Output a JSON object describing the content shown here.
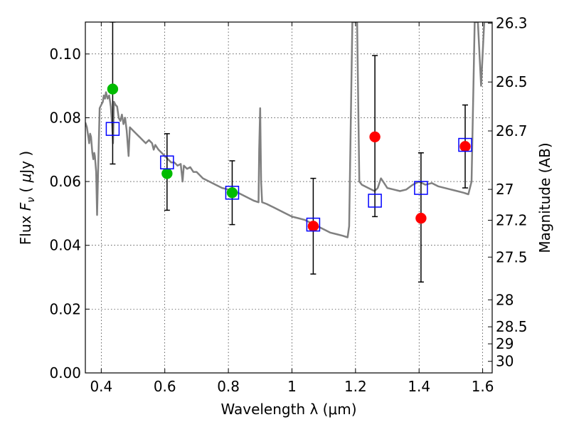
{
  "chart_data": {
    "type": "scatter",
    "xlabel": "Wavelength  λ (μm)",
    "ylabel_left": "Flux  F_ν  ( μJy )",
    "ylabel_right": "Magnitude (AB)",
    "xlim": [
      0.35,
      1.63
    ],
    "ylim": [
      0.0,
      0.11
    ],
    "grid": true,
    "x_ticks": [
      {
        "value": 0.4,
        "label": "0.4"
      },
      {
        "value": 0.6,
        "label": "0.6"
      },
      {
        "value": 0.8,
        "label": "0.8"
      },
      {
        "value": 1.0,
        "label": "1"
      },
      {
        "value": 1.2,
        "label": "1.2"
      },
      {
        "value": 1.4,
        "label": "1.4"
      },
      {
        "value": 1.6,
        "label": "1.6"
      }
    ],
    "y_ticks": [
      {
        "value": 0.0,
        "label": "0.00"
      },
      {
        "value": 0.02,
        "label": "0.02"
      },
      {
        "value": 0.04,
        "label": "0.04"
      },
      {
        "value": 0.06,
        "label": "0.06"
      },
      {
        "value": 0.08,
        "label": "0.08"
      },
      {
        "value": 0.1,
        "label": "0.10"
      }
    ],
    "mag_ticks": [
      {
        "value": 26.3,
        "label": "26.3"
      },
      {
        "value": 26.5,
        "label": "26.5"
      },
      {
        "value": 26.7,
        "label": "26.7"
      },
      {
        "value": 27.0,
        "label": "27"
      },
      {
        "value": 27.2,
        "label": "27.2"
      },
      {
        "value": 27.5,
        "label": "27.5"
      },
      {
        "value": 28.0,
        "label": "28"
      },
      {
        "value": 28.5,
        "label": "28.5"
      },
      {
        "value": 29.0,
        "label": "29"
      },
      {
        "value": 30.0,
        "label": "30"
      }
    ],
    "model_spectrum": {
      "color": "#808080",
      "points": [
        [
          0.35,
          0.0785
        ],
        [
          0.355,
          0.077
        ],
        [
          0.36,
          0.0735
        ],
        [
          0.362,
          0.072
        ],
        [
          0.365,
          0.075
        ],
        [
          0.368,
          0.074
        ],
        [
          0.372,
          0.069
        ],
        [
          0.375,
          0.067
        ],
        [
          0.378,
          0.069
        ],
        [
          0.38,
          0.068
        ],
        [
          0.384,
          0.063
        ],
        [
          0.387,
          0.0495
        ],
        [
          0.39,
          0.063
        ],
        [
          0.395,
          0.083
        ],
        [
          0.4,
          0.084
        ],
        [
          0.405,
          0.085
        ],
        [
          0.408,
          0.087
        ],
        [
          0.412,
          0.086
        ],
        [
          0.415,
          0.088
        ],
        [
          0.42,
          0.086
        ],
        [
          0.425,
          0.087
        ],
        [
          0.43,
          0.0835
        ],
        [
          0.434,
          0.078
        ],
        [
          0.437,
          0.072
        ],
        [
          0.44,
          0.085
        ],
        [
          0.445,
          0.084
        ],
        [
          0.45,
          0.0835
        ],
        [
          0.455,
          0.08
        ],
        [
          0.46,
          0.079
        ],
        [
          0.465,
          0.081
        ],
        [
          0.47,
          0.078
        ],
        [
          0.475,
          0.08
        ],
        [
          0.48,
          0.076
        ],
        [
          0.486,
          0.068
        ],
        [
          0.49,
          0.077
        ],
        [
          0.5,
          0.076
        ],
        [
          0.51,
          0.075
        ],
        [
          0.52,
          0.074
        ],
        [
          0.53,
          0.073
        ],
        [
          0.54,
          0.072
        ],
        [
          0.55,
          0.073
        ],
        [
          0.56,
          0.072
        ],
        [
          0.565,
          0.07
        ],
        [
          0.57,
          0.0715
        ],
        [
          0.58,
          0.07
        ],
        [
          0.59,
          0.069
        ],
        [
          0.6,
          0.068
        ],
        [
          0.61,
          0.067
        ],
        [
          0.62,
          0.066
        ],
        [
          0.63,
          0.066
        ],
        [
          0.64,
          0.065
        ],
        [
          0.65,
          0.0655
        ],
        [
          0.656,
          0.06
        ],
        [
          0.66,
          0.065
        ],
        [
          0.67,
          0.064
        ],
        [
          0.68,
          0.0645
        ],
        [
          0.69,
          0.063
        ],
        [
          0.7,
          0.063
        ],
        [
          0.72,
          0.061
        ],
        [
          0.74,
          0.06
        ],
        [
          0.76,
          0.059
        ],
        [
          0.78,
          0.058
        ],
        [
          0.8,
          0.0575
        ],
        [
          0.82,
          0.057
        ],
        [
          0.84,
          0.056
        ],
        [
          0.86,
          0.055
        ],
        [
          0.88,
          0.054
        ],
        [
          0.895,
          0.0535
        ],
        [
          0.897,
          0.07
        ],
        [
          0.9,
          0.083
        ],
        [
          0.903,
          0.06
        ],
        [
          0.906,
          0.0535
        ],
        [
          0.92,
          0.053
        ],
        [
          0.94,
          0.052
        ],
        [
          0.96,
          0.051
        ],
        [
          0.98,
          0.05
        ],
        [
          1.0,
          0.049
        ],
        [
          1.02,
          0.0485
        ],
        [
          1.04,
          0.048
        ],
        [
          1.06,
          0.047
        ],
        [
          1.08,
          0.046
        ],
        [
          1.1,
          0.045
        ],
        [
          1.12,
          0.044
        ],
        [
          1.14,
          0.0435
        ],
        [
          1.16,
          0.043
        ],
        [
          1.175,
          0.0425
        ],
        [
          1.18,
          0.046
        ],
        [
          1.19,
          0.11
        ],
        [
          1.205,
          0.11
        ],
        [
          1.212,
          0.06
        ],
        [
          1.22,
          0.059
        ],
        [
          1.24,
          0.058
        ],
        [
          1.26,
          0.057
        ],
        [
          1.27,
          0.058
        ],
        [
          1.28,
          0.061
        ],
        [
          1.29,
          0.0595
        ],
        [
          1.3,
          0.058
        ],
        [
          1.32,
          0.0575
        ],
        [
          1.34,
          0.057
        ],
        [
          1.36,
          0.0575
        ],
        [
          1.38,
          0.059
        ],
        [
          1.4,
          0.06
        ],
        [
          1.42,
          0.059
        ],
        [
          1.44,
          0.0595
        ],
        [
          1.46,
          0.0585
        ],
        [
          1.48,
          0.058
        ],
        [
          1.5,
          0.0575
        ],
        [
          1.52,
          0.057
        ],
        [
          1.54,
          0.0565
        ],
        [
          1.555,
          0.056
        ],
        [
          1.565,
          0.06
        ],
        [
          1.575,
          0.11
        ],
        [
          1.585,
          0.11
        ],
        [
          1.595,
          0.09
        ],
        [
          1.605,
          0.11
        ],
        [
          1.63,
          0.11
        ]
      ]
    },
    "series": [
      {
        "marker": "square-open",
        "color": "#0000ff",
        "points": [
          {
            "x": 0.436,
            "y": 0.0765,
            "err_low": 0.0655,
            "err_high": 0.11
          },
          {
            "x": 0.607,
            "y": 0.066,
            "err_low": 0.051,
            "err_high": 0.075
          },
          {
            "x": 0.812,
            "y": 0.0565,
            "err_low": 0.0465,
            "err_high": 0.0665
          },
          {
            "x": 1.067,
            "y": 0.0465,
            "err_low": 0.031,
            "err_high": 0.061
          },
          {
            "x": 1.261,
            "y": 0.054,
            "err_low": 0.049,
            "err_high": 0.0995
          },
          {
            "x": 1.406,
            "y": 0.058,
            "err_low": 0.0285,
            "err_high": 0.069
          },
          {
            "x": 1.545,
            "y": 0.0715,
            "err_low": 0.058,
            "err_high": 0.084
          }
        ]
      },
      {
        "marker": "circle-filled",
        "color": "#00bb00",
        "points": [
          {
            "x": 0.436,
            "y": 0.089
          },
          {
            "x": 0.607,
            "y": 0.0625
          },
          {
            "x": 0.812,
            "y": 0.0565
          }
        ]
      },
      {
        "marker": "circle-filled",
        "color": "#ff0000",
        "points": [
          {
            "x": 1.067,
            "y": 0.046
          },
          {
            "x": 1.261,
            "y": 0.074
          },
          {
            "x": 1.406,
            "y": 0.0485
          },
          {
            "x": 1.545,
            "y": 0.071
          }
        ]
      }
    ]
  }
}
